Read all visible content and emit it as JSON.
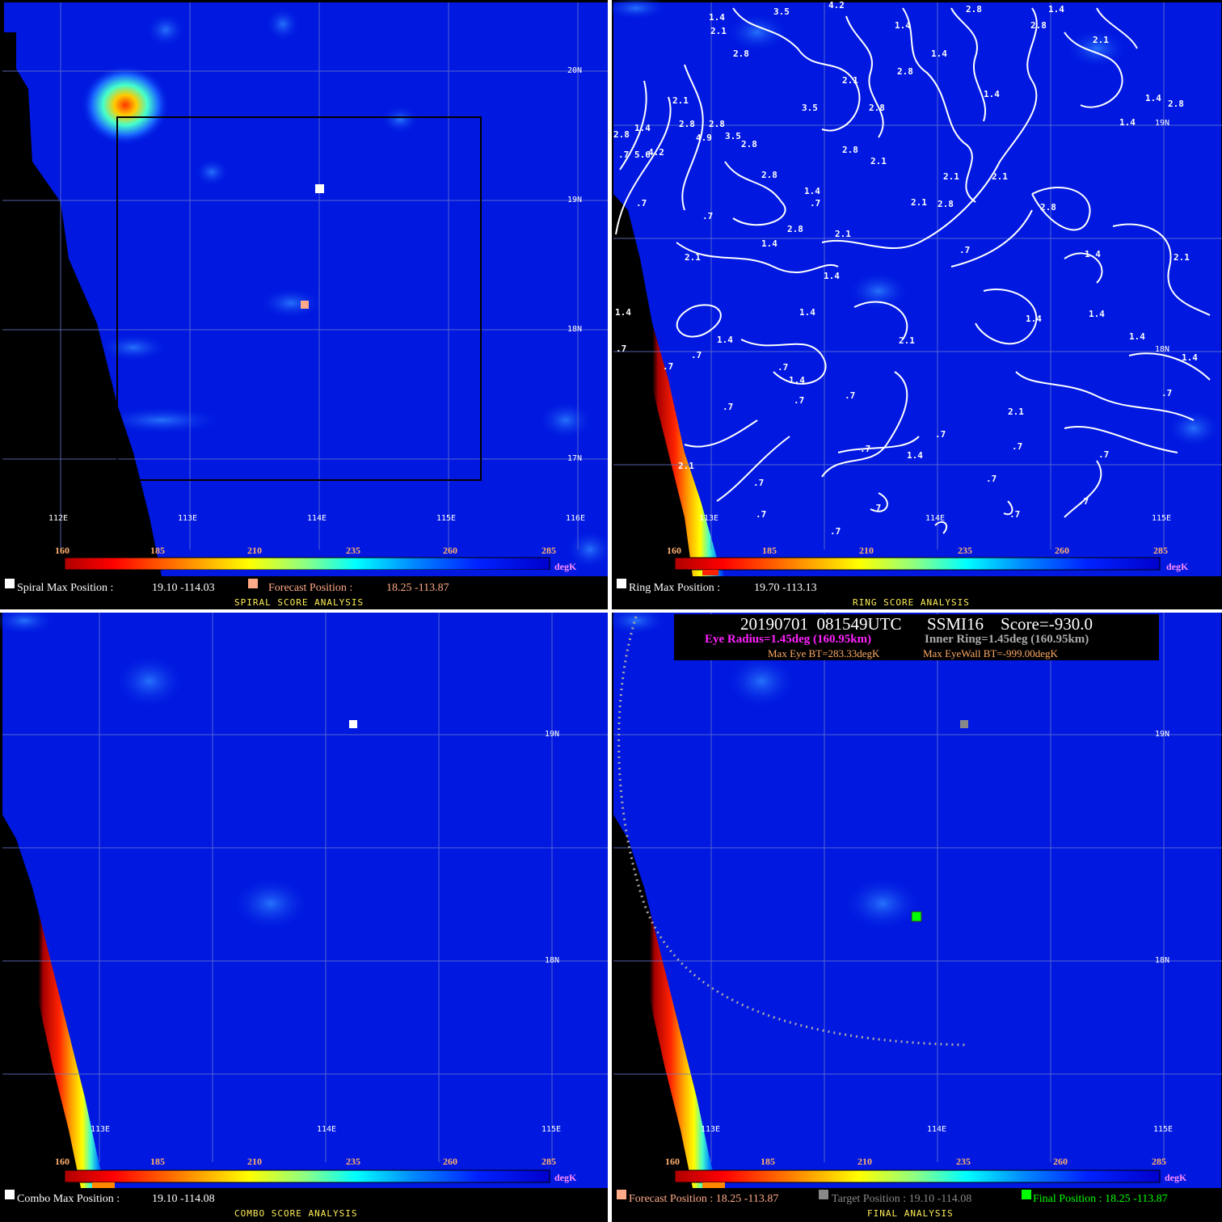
{
  "colorbar": {
    "ticks": [
      "160",
      "185",
      "210",
      "235",
      "260",
      "285"
    ],
    "unit": "degK"
  },
  "panels": {
    "spiral": {
      "lat_labels": [
        "20N",
        "19N",
        "18N",
        "17N"
      ],
      "lon_labels": [
        "112E",
        "113E",
        "114E",
        "115E",
        "116E"
      ],
      "max_label": "Spiral Max Position :",
      "max_value": "19.10 -114.03",
      "forecast_label": "Forecast Position :",
      "forecast_value": "18.25 -113.87",
      "title": "SPIRAL SCORE ANALYSIS",
      "colors": {
        "max": "#ffffff",
        "forecast": "#ffaa88"
      }
    },
    "ring": {
      "lat_labels": [
        "19N",
        "18N"
      ],
      "lon_labels": [
        "113E",
        "114E",
        "115E"
      ],
      "max_label": "Ring Max Position :",
      "max_value": "19.70 -113.13",
      "title": "RING SCORE ANALYSIS",
      "contour_labels": [
        "1.4",
        "2.1",
        "3.5",
        "4.2",
        "2.8",
        "1.4",
        "2.1",
        "2.8",
        "1.4",
        "2.8",
        "2.8",
        "1.4",
        "2.1",
        "1.4",
        "2.8",
        "1.4",
        "1.4",
        "2.1",
        "3.5",
        "2.8",
        "2.8",
        "2.8",
        "2.8",
        "1.4",
        ".7",
        "5.6",
        "4.2",
        "4.9",
        "3.5",
        "2.8",
        "2.8",
        "2.1",
        "2.8",
        "2.1",
        "2.1",
        "1.4",
        ".7",
        "2.1",
        "2.8",
        "2.8",
        ".7",
        ".7",
        "2.8",
        "2.1",
        "1.4",
        ".7",
        "2.1",
        "1.4",
        "1.4",
        "2.1",
        "1.4",
        "1.4",
        ".7",
        "1.4",
        "2.1",
        "1.4",
        "1.4",
        "1.4",
        "1.4",
        ".7",
        ".7",
        ".7",
        "1.4",
        ".7",
        ".7",
        ".7",
        ".7",
        "2.1",
        ".7",
        ".7",
        ".7",
        "1.4",
        ".7",
        "2.1",
        ".7",
        ".7",
        ".7"
      ]
    },
    "combo": {
      "lat_labels": [
        "19N",
        "18N"
      ],
      "lon_labels": [
        "113E",
        "114E",
        "115E"
      ],
      "max_label": "Combo Max Position :",
      "max_value": "19.10 -114.08",
      "title": "COMBO SCORE ANALYSIS"
    },
    "final": {
      "lat_labels": [
        "19N",
        "18N"
      ],
      "lon_labels": [
        "113E",
        "114E",
        "115E"
      ],
      "header_line1": "20190701  081549UTC      SSMI16    Score=-930.0",
      "eye_radius": "Eye Radius=1.45deg (160.95km)",
      "inner_ring": "Inner Ring=1.45deg (160.95km)",
      "max_eye_bt": "Max Eye BT=283.33degK",
      "max_eyewall_bt": "Max EyeWall BT=-999.00degK",
      "forecast_label": "Forecast Position : 18.25 -113.87",
      "target_label": "Target Position : 19.10 -114.08",
      "final_label": "Final Position : 18.25 -113.87",
      "title": "FINAL ANALYSIS",
      "colors": {
        "forecast": "#ffaa88",
        "target": "#888888",
        "final": "#00ff00",
        "eye": "#ff22ff",
        "inner": "#aaaaaa",
        "bt": "#ffaa66"
      }
    }
  }
}
